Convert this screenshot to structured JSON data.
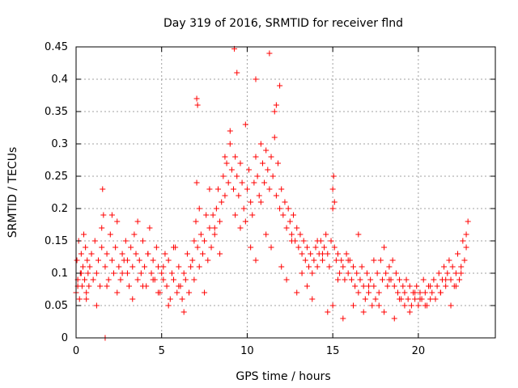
{
  "chart_data": {
    "type": "scatter",
    "title": "Day 319 of 2016, SRMTID for receiver flnd",
    "xlabel": "GPS time / hours",
    "ylabel": "SRMTID / TECUs",
    "xlim": [
      0,
      24.5
    ],
    "ylim": [
      0,
      0.45
    ],
    "xticks": [
      0,
      5,
      10,
      15,
      20
    ],
    "yticks": [
      0,
      0.05,
      0.1,
      0.15,
      0.2,
      0.25,
      0.3,
      0.35,
      0.4,
      0.45
    ],
    "xtick_labels": [
      "0",
      "5",
      "10",
      "15",
      "20"
    ],
    "ytick_labels": [
      "0",
      "0.05",
      "0.1",
      "0.15",
      "0.2",
      "0.25",
      "0.3",
      "0.35",
      "0.4",
      "0.45"
    ],
    "grid": true,
    "marker": "plus",
    "color": "#ff0000",
    "series": [
      {
        "x": [
          0.0,
          0.05,
          0.1,
          0.15,
          0.2,
          0.25,
          0.3,
          0.35,
          0.4,
          0.45,
          0.5,
          0.55,
          0.6,
          0.65,
          0.7,
          0.75,
          0.8,
          0.9,
          1.0,
          1.1,
          1.2,
          1.3,
          1.4,
          1.5,
          1.55,
          1.6,
          1.7,
          1.8,
          1.9,
          2.0,
          2.1,
          2.2,
          2.3,
          2.4,
          2.5,
          2.6,
          2.7,
          2.8,
          2.9,
          3.0,
          3.1,
          3.2,
          3.3,
          3.4,
          3.5,
          3.6,
          3.7,
          3.8,
          3.9,
          4.0,
          4.1,
          4.2,
          4.3,
          4.4,
          4.5,
          4.6,
          4.7,
          4.8,
          4.9,
          5.0,
          5.1,
          5.2,
          5.3,
          5.4,
          5.5,
          5.6,
          5.7,
          5.8,
          5.9,
          6.0,
          6.1,
          6.2,
          6.3,
          6.4,
          6.5,
          6.6,
          6.7,
          6.8,
          6.9,
          7.0,
          7.05,
          7.1,
          7.2,
          7.3,
          7.4,
          7.5,
          7.6,
          7.7,
          7.8,
          7.9,
          8.0,
          8.1,
          8.2,
          8.3,
          8.4,
          8.5,
          8.6,
          8.7,
          8.8,
          8.9,
          9.0,
          9.1,
          9.2,
          9.3,
          9.4,
          9.5,
          9.6,
          9.7,
          9.8,
          9.9,
          10.0,
          10.1,
          10.2,
          10.3,
          10.4,
          10.5,
          10.6,
          10.7,
          10.8,
          10.9,
          11.0,
          11.1,
          11.2,
          11.3,
          11.4,
          11.5,
          11.6,
          11.7,
          11.8,
          11.9,
          12.0,
          12.1,
          12.2,
          12.3,
          12.4,
          12.5,
          12.6,
          12.7,
          12.8,
          12.9,
          13.0,
          13.1,
          13.2,
          13.3,
          13.4,
          13.5,
          13.6,
          13.7,
          13.8,
          13.9,
          14.0,
          14.1,
          14.2,
          14.3,
          14.4,
          14.5,
          14.6,
          14.7,
          14.8,
          14.9,
          15.0,
          15.05,
          15.1,
          15.2,
          15.3,
          15.4,
          15.5,
          15.6,
          15.7,
          15.8,
          15.9,
          16.0,
          16.1,
          16.2,
          16.3,
          16.4,
          16.5,
          16.6,
          16.7,
          16.8,
          16.9,
          17.0,
          17.1,
          17.2,
          17.3,
          17.4,
          17.5,
          17.6,
          17.7,
          17.8,
          17.9,
          18.0,
          18.1,
          18.2,
          18.3,
          18.4,
          18.5,
          18.6,
          18.7,
          18.8,
          18.9,
          19.0,
          19.1,
          19.2,
          19.3,
          19.4,
          19.5,
          19.6,
          19.7,
          19.8,
          19.9,
          20.0,
          20.1,
          20.2,
          20.3,
          20.4,
          20.5,
          20.6,
          20.7,
          20.8,
          20.9,
          21.0,
          21.1,
          21.2,
          21.3,
          21.4,
          21.5,
          21.6,
          21.7,
          21.8,
          21.9,
          22.0,
          22.1,
          22.2,
          22.3,
          22.4,
          22.5,
          22.6,
          22.7,
          22.8,
          22.9,
          0.1,
          0.3,
          0.6,
          0.9,
          1.2,
          1.5,
          1.8,
          2.1,
          2.4,
          2.7,
          3.0,
          3.3,
          3.6,
          3.9,
          4.2,
          4.5,
          4.8,
          5.1,
          5.4,
          5.7,
          6.0,
          6.3,
          6.6,
          6.9,
          7.2,
          7.5,
          7.8,
          8.1,
          8.4,
          8.7,
          9.0,
          9.3,
          9.6,
          9.9,
          10.2,
          10.5,
          10.8,
          11.1,
          11.4,
          11.7,
          12.0,
          12.3,
          12.6,
          12.9,
          13.2,
          13.5,
          13.8,
          14.1,
          14.4,
          14.7,
          15.0,
          15.3,
          15.6,
          15.9,
          16.2,
          16.5,
          16.8,
          17.1,
          17.4,
          17.7,
          18.0,
          18.3,
          18.6,
          18.9,
          19.2,
          19.5,
          19.8,
          20.1,
          20.4,
          20.7,
          21.0,
          21.3,
          21.6,
          21.9,
          22.2,
          22.5,
          22.8,
          9.25,
          9.4,
          10.5,
          11.3,
          11.6,
          11.9,
          7.05,
          7.1,
          15.0,
          15.1,
          1.7
        ],
        "y": [
          0.07,
          0.12,
          0.09,
          0.15,
          0.06,
          0.1,
          0.13,
          0.08,
          0.11,
          0.16,
          0.09,
          0.14,
          0.07,
          0.12,
          0.1,
          0.08,
          0.11,
          0.13,
          0.09,
          0.15,
          0.1,
          0.12,
          0.08,
          0.14,
          0.23,
          0.19,
          0.11,
          0.13,
          0.09,
          0.16,
          0.12,
          0.1,
          0.14,
          0.18,
          0.11,
          0.09,
          0.13,
          0.12,
          0.15,
          0.1,
          0.08,
          0.14,
          0.11,
          0.16,
          0.13,
          0.09,
          0.12,
          0.1,
          0.15,
          0.11,
          0.08,
          0.13,
          0.17,
          0.1,
          0.12,
          0.09,
          0.14,
          0.11,
          0.07,
          0.1,
          0.09,
          0.13,
          0.08,
          0.12,
          0.06,
          0.1,
          0.09,
          0.14,
          0.07,
          0.11,
          0.08,
          0.06,
          0.1,
          0.09,
          0.13,
          0.07,
          0.11,
          0.12,
          0.15,
          0.18,
          0.24,
          0.14,
          0.11,
          0.16,
          0.13,
          0.15,
          0.19,
          0.12,
          0.17,
          0.14,
          0.19,
          0.16,
          0.2,
          0.23,
          0.18,
          0.21,
          0.25,
          0.22,
          0.27,
          0.24,
          0.3,
          0.26,
          0.23,
          0.28,
          0.25,
          0.22,
          0.27,
          0.24,
          0.2,
          0.18,
          0.23,
          0.26,
          0.21,
          0.19,
          0.24,
          0.28,
          0.25,
          0.22,
          0.3,
          0.27,
          0.24,
          0.29,
          0.26,
          0.23,
          0.28,
          0.25,
          0.31,
          0.22,
          0.27,
          0.2,
          0.23,
          0.19,
          0.21,
          0.17,
          0.2,
          0.18,
          0.16,
          0.19,
          0.15,
          0.17,
          0.14,
          0.16,
          0.13,
          0.15,
          0.12,
          0.14,
          0.11,
          0.13,
          0.1,
          0.12,
          0.14,
          0.11,
          0.13,
          0.15,
          0.12,
          0.14,
          0.16,
          0.13,
          0.11,
          0.15,
          0.2,
          0.25,
          0.14,
          0.12,
          0.13,
          0.1,
          0.12,
          0.11,
          0.09,
          0.13,
          0.1,
          0.12,
          0.09,
          0.11,
          0.08,
          0.1,
          0.07,
          0.09,
          0.11,
          0.08,
          0.06,
          0.1,
          0.07,
          0.09,
          0.05,
          0.08,
          0.06,
          0.1,
          0.07,
          0.12,
          0.09,
          0.14,
          0.1,
          0.08,
          0.11,
          0.09,
          0.12,
          0.08,
          0.1,
          0.07,
          0.09,
          0.06,
          0.08,
          0.07,
          0.09,
          0.06,
          0.08,
          0.05,
          0.07,
          0.06,
          0.08,
          0.05,
          0.07,
          0.06,
          0.09,
          0.07,
          0.05,
          0.08,
          0.06,
          0.07,
          0.09,
          0.06,
          0.08,
          0.1,
          0.07,
          0.09,
          0.11,
          0.08,
          0.1,
          0.12,
          0.09,
          0.11,
          0.08,
          0.1,
          0.13,
          0.09,
          0.11,
          0.15,
          0.12,
          0.16,
          0.18,
          0.08,
          0.1,
          0.06,
          0.13,
          0.05,
          0.17,
          0.08,
          0.19,
          0.07,
          0.1,
          0.12,
          0.06,
          0.18,
          0.08,
          0.13,
          0.09,
          0.07,
          0.11,
          0.05,
          0.14,
          0.08,
          0.04,
          0.07,
          0.09,
          0.2,
          0.07,
          0.23,
          0.17,
          0.13,
          0.28,
          0.32,
          0.19,
          0.17,
          0.33,
          0.14,
          0.12,
          0.21,
          0.16,
          0.14,
          0.36,
          0.11,
          0.09,
          0.15,
          0.07,
          0.1,
          0.08,
          0.06,
          0.15,
          0.13,
          0.04,
          0.05,
          0.09,
          0.03,
          0.12,
          0.05,
          0.16,
          0.04,
          0.08,
          0.12,
          0.05,
          0.04,
          0.09,
          0.03,
          0.06,
          0.05,
          0.04,
          0.07,
          0.06,
          0.05,
          0.08,
          0.06,
          0.07,
          0.09,
          0.05,
          0.08,
          0.1,
          0.14,
          0.447,
          0.41,
          0.4,
          0.44,
          0.35,
          0.39,
          0.37,
          0.36,
          0.23,
          0.21,
          0.0
        ]
      }
    ]
  }
}
